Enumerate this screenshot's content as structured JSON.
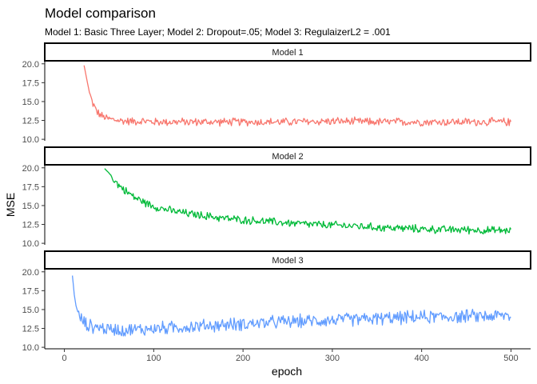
{
  "chart_data": {
    "type": "line",
    "title": "Model comparison",
    "subtitle": "Model 1: Basic Three Layer; Model 2: Dropout=.05; Model 3: RegulaizerL2 = .001",
    "xlabel": "epoch",
    "ylabel": "MSE",
    "xlim": [
      -22,
      522
    ],
    "x_ticks": [
      "0",
      "100",
      "200",
      "300",
      "400",
      "500"
    ],
    "x_tick_values": [
      0,
      100,
      200,
      300,
      400,
      500
    ],
    "grid": false,
    "legend": "none",
    "panels": [
      {
        "strip": "Model 1",
        "color": "#F8766D",
        "ylim": [
          9.8,
          20.4
        ],
        "y_ticks": [
          "10.0",
          "12.5",
          "15.0",
          "17.5",
          "20.0"
        ],
        "y_tick_values": [
          10.0,
          12.5,
          15.0,
          17.5,
          20.0
        ],
        "x": [
          22,
          25,
          28,
          31,
          34,
          37,
          40,
          45,
          50,
          60,
          70,
          80,
          90,
          100,
          120,
          150,
          200,
          250,
          300,
          350,
          400,
          450,
          500
        ],
        "values": [
          19.8,
          18.0,
          16.2,
          15.0,
          14.2,
          13.6,
          13.2,
          12.9,
          12.7,
          12.5,
          12.4,
          12.4,
          12.4,
          12.3,
          12.3,
          12.3,
          12.3,
          12.3,
          12.4,
          12.3,
          12.3,
          12.3,
          12.3
        ]
      },
      {
        "strip": "Model 2",
        "color": "#00BA38",
        "ylim": [
          9.8,
          20.4
        ],
        "y_ticks": [
          "10.0",
          "12.5",
          "15.0",
          "17.5",
          "20.0"
        ],
        "y_tick_values": [
          10.0,
          12.5,
          15.0,
          17.5,
          20.0
        ],
        "x": [
          45,
          50,
          55,
          60,
          70,
          80,
          90,
          100,
          120,
          140,
          160,
          180,
          200,
          225,
          250,
          275,
          300,
          325,
          350,
          375,
          400,
          425,
          450,
          475,
          500
        ],
        "values": [
          19.9,
          19.3,
          18.5,
          17.8,
          16.8,
          16.0,
          15.4,
          14.9,
          14.3,
          13.9,
          13.6,
          13.3,
          13.1,
          12.9,
          12.7,
          12.5,
          12.4,
          12.3,
          12.1,
          12.0,
          11.9,
          11.8,
          11.8,
          11.7,
          11.7
        ]
      },
      {
        "strip": "Model 3",
        "color": "#619CFF",
        "ylim": [
          9.8,
          20.4
        ],
        "y_ticks": [
          "10.0",
          "12.5",
          "15.0",
          "17.5",
          "20.0"
        ],
        "y_tick_values": [
          10.0,
          12.5,
          15.0,
          17.5,
          20.0
        ],
        "x": [
          9,
          11,
          13,
          16,
          20,
          25,
          30,
          40,
          50,
          70,
          90,
          100,
          120,
          150,
          200,
          250,
          300,
          350,
          400,
          450,
          500
        ],
        "values": [
          19.5,
          17.0,
          15.5,
          14.3,
          13.5,
          13.0,
          12.8,
          12.6,
          12.4,
          12.3,
          12.4,
          12.5,
          12.6,
          12.8,
          13.1,
          13.4,
          13.6,
          13.8,
          14.0,
          14.1,
          14.2
        ]
      }
    ]
  }
}
